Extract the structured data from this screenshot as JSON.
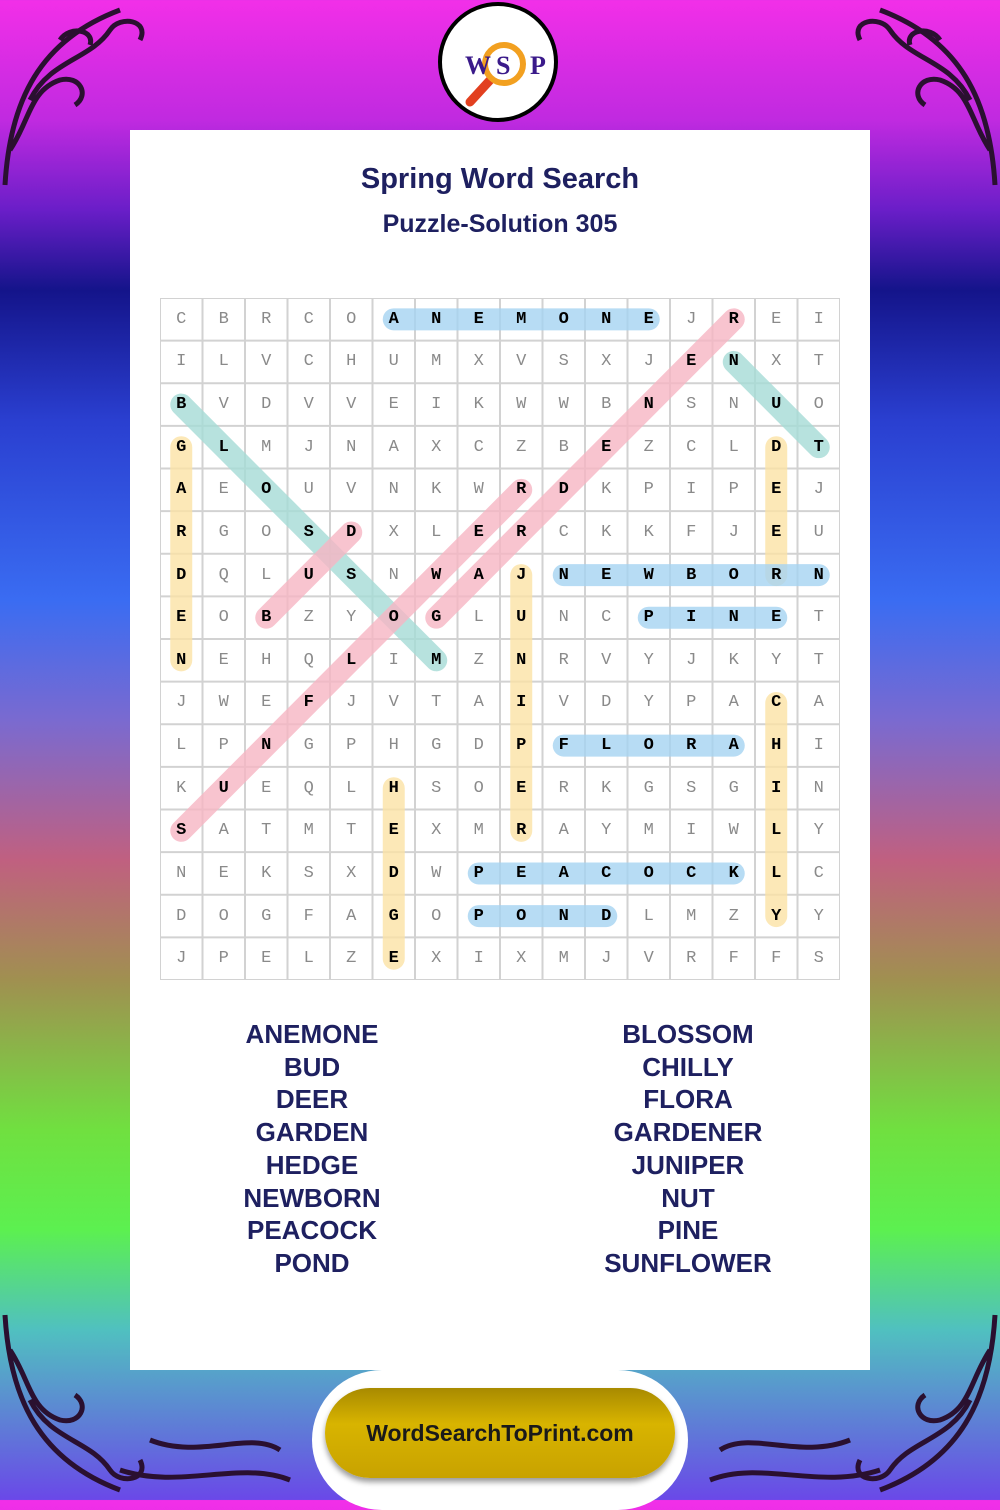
{
  "logo": {
    "letters": [
      "W",
      "S",
      "P"
    ]
  },
  "header": {
    "title": "Spring Word Search",
    "subtitle": "Puzzle-Solution 305"
  },
  "grid": [
    "CBRCOANEMONEJREI",
    "ILVCHUMXVSXJENXT",
    "BVDVVEIKWWBNSNUO",
    "GLMJNAXCZBEZCLDT",
    "AEOUVNKWRDKPIPEJ",
    "RGOSDXLERCKKFJEU",
    "DQLUSNWAJNEWBORN",
    "EOBZYOGLUNCPINET",
    "NEHQLIMZNRVYJKYT",
    "JWEFJVTAIVDYPACA",
    "LPNGPHGDPFLORAHI",
    "KUEQLHSOERKGSGIN",
    "SATMTEXMRAYMIWLY",
    "NEKSXDWPEACOCKLC",
    "DOGFAGOPONDLMZYY",
    "JPELZEXIXMJVRFFS"
  ],
  "colors": {
    "blue": "#a6d4f2",
    "pink": "#f7b6c4",
    "teal": "#a6dcd6",
    "yellow": "#fce3a6",
    "title": "#1e2060",
    "footer": "#c8a200"
  },
  "solutions": [
    {
      "word": "ANEMONE",
      "start": [
        0,
        5
      ],
      "end": [
        0,
        11
      ],
      "color": "blue"
    },
    {
      "word": "GARDENER",
      "start": [
        7,
        6
      ],
      "end": [
        0,
        13
      ],
      "color": "pink"
    },
    {
      "word": "NUT",
      "start": [
        1,
        13
      ],
      "end": [
        3,
        15
      ],
      "color": "teal"
    },
    {
      "word": "BLOSSOM",
      "start": [
        2,
        0
      ],
      "end": [
        8,
        6
      ],
      "color": "teal"
    },
    {
      "word": "GARDEN",
      "start": [
        3,
        0
      ],
      "end": [
        8,
        0
      ],
      "color": "yellow"
    },
    {
      "word": "DEER",
      "start": [
        3,
        14
      ],
      "end": [
        6,
        14
      ],
      "color": "yellow"
    },
    {
      "word": "BUD",
      "start": [
        7,
        2
      ],
      "end": [
        5,
        4
      ],
      "color": "pink"
    },
    {
      "word": "SUNFLOWER",
      "start": [
        12,
        0
      ],
      "end": [
        4,
        8
      ],
      "color": "pink"
    },
    {
      "word": "JUNIPER",
      "start": [
        6,
        8
      ],
      "end": [
        12,
        8
      ],
      "color": "yellow"
    },
    {
      "word": "NEWBORN",
      "start": [
        6,
        9
      ],
      "end": [
        6,
        15
      ],
      "color": "blue"
    },
    {
      "word": "PINE",
      "start": [
        7,
        11
      ],
      "end": [
        7,
        14
      ],
      "color": "blue"
    },
    {
      "word": "CHILLY",
      "start": [
        9,
        14
      ],
      "end": [
        14,
        14
      ],
      "color": "yellow"
    },
    {
      "word": "FLORA",
      "start": [
        10,
        9
      ],
      "end": [
        10,
        13
      ],
      "color": "blue"
    },
    {
      "word": "HEDGE",
      "start": [
        11,
        5
      ],
      "end": [
        15,
        5
      ],
      "color": "yellow"
    },
    {
      "word": "PEACOCK",
      "start": [
        13,
        7
      ],
      "end": [
        13,
        13
      ],
      "color": "blue"
    },
    {
      "word": "POND",
      "start": [
        14,
        7
      ],
      "end": [
        14,
        10
      ],
      "color": "blue"
    }
  ],
  "word_list": {
    "left": [
      "ANEMONE",
      "BUD",
      "DEER",
      "GARDEN",
      "HEDGE",
      "NEWBORN",
      "PEACOCK",
      "POND"
    ],
    "right": [
      "BLOSSOM",
      "CHILLY",
      "FLORA",
      "GARDENER",
      "JUNIPER",
      "NUT",
      "PINE",
      "SUNFLOWER"
    ]
  },
  "footer": {
    "site": "WordSearchToPrint.com"
  }
}
